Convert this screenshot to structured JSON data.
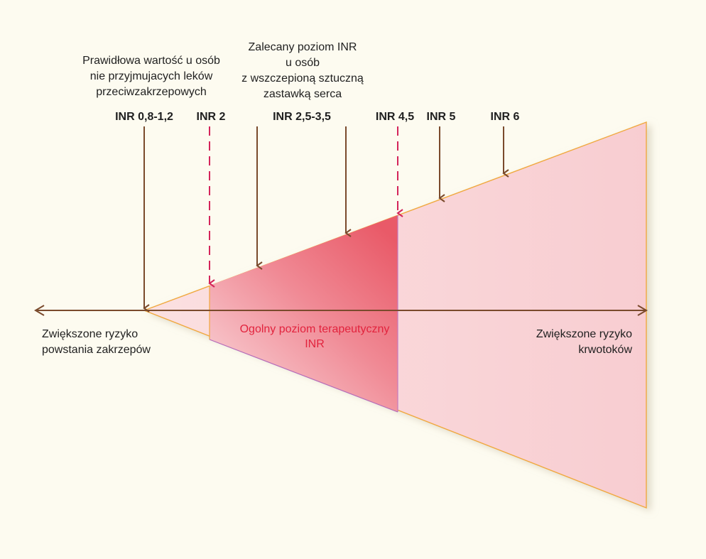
{
  "labels": {
    "normal_value": [
      "Prawidłowa wartość u osób",
      "nie przyjmujacych leków",
      "przeciwzakrzepowych"
    ],
    "recommended": [
      "Zalecany poziom INR",
      "u osób",
      "z wszczepioną sztuczną",
      "zastawką serca"
    ],
    "left_risk": [
      "Zwiększone ryzyko",
      "powstania zakrzepów"
    ],
    "right_risk": [
      "Zwiększone ryzyko",
      "krwotoków"
    ],
    "therapeutic": [
      "Ogolny poziom terapeutyczny",
      "INR"
    ]
  },
  "markers": [
    {
      "id": "inr-08-12",
      "label": "INR 0,8-1,2",
      "style": "solid"
    },
    {
      "id": "inr-2",
      "label": "INR 2",
      "style": "dashed"
    },
    {
      "id": "inr-25-35-low",
      "label": "",
      "style": "solid"
    },
    {
      "id": "inr-25-35",
      "label": "INR 2,5-3,5",
      "style": "solid"
    },
    {
      "id": "inr-45",
      "label": "INR 4,5",
      "style": "dashed"
    },
    {
      "id": "inr-5",
      "label": "INR 5",
      "style": "solid"
    },
    {
      "id": "inr-6",
      "label": "INR 6",
      "style": "solid"
    }
  ],
  "colors": {
    "background": "#fdfbf0",
    "arrow_brown": "#7a4a2c",
    "dashed_magenta": "#d4245a",
    "wedge_light": "#f9d2d5",
    "wedge_deep": "#ec6f7b",
    "outline_orange": "#f0a83c",
    "therapeutic_text": "#e2233d"
  }
}
